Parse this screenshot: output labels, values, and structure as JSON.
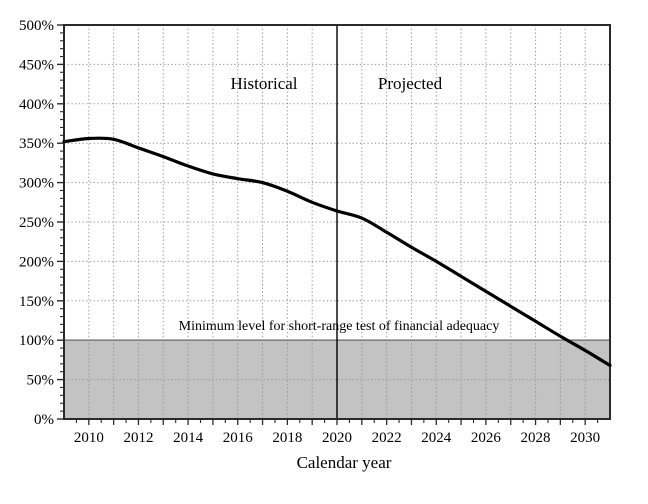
{
  "chart_data": {
    "type": "line",
    "title": "",
    "xlabel": "Calendar year",
    "ylabel": "",
    "x_range": [
      2009,
      2031
    ],
    "y_range": [
      0,
      500
    ],
    "x": [
      2009,
      2010,
      2011,
      2012,
      2013,
      2014,
      2015,
      2016,
      2017,
      2018,
      2019,
      2020,
      2021,
      2022,
      2023,
      2024,
      2025,
      2026,
      2027,
      2028,
      2029,
      2030,
      2031
    ],
    "values": [
      352,
      356,
      355,
      344,
      333,
      321,
      311,
      305,
      300,
      289,
      275,
      264,
      255,
      237,
      218,
      200,
      181,
      162,
      143,
      124,
      105,
      87,
      68
    ],
    "x_tick_labels": [
      "2010",
      "2012",
      "2014",
      "2016",
      "2018",
      "2020",
      "2022",
      "2024",
      "2026",
      "2028",
      "2030"
    ],
    "x_tick_values": [
      2010,
      2012,
      2014,
      2016,
      2018,
      2020,
      2022,
      2024,
      2026,
      2028,
      2030
    ],
    "y_tick_labels": [
      "0%",
      "50%",
      "100%",
      "150%",
      "200%",
      "250%",
      "300%",
      "350%",
      "400%",
      "450%",
      "500%"
    ],
    "y_tick_values": [
      0,
      50,
      100,
      150,
      200,
      250,
      300,
      350,
      400,
      450,
      500
    ],
    "y_minor_step": 10,
    "x_minor_step": 0.5,
    "grid": "dotted",
    "legend": "none",
    "divider_year": 2020,
    "shaded_band": {
      "y_from": 0,
      "y_to": 100
    },
    "annotations": {
      "historical": "Historical",
      "projected": "Projected",
      "minimum_level": "Minimum level for short-range test of financial adequacy"
    },
    "colors": {
      "line": "#000000",
      "band_fill": "#c3c3c3",
      "band_edge": "#808080",
      "grid": "#949494",
      "axis": "#2a2a2a",
      "divider": "#000000",
      "text": "#000000",
      "background": "#ffffff"
    }
  }
}
